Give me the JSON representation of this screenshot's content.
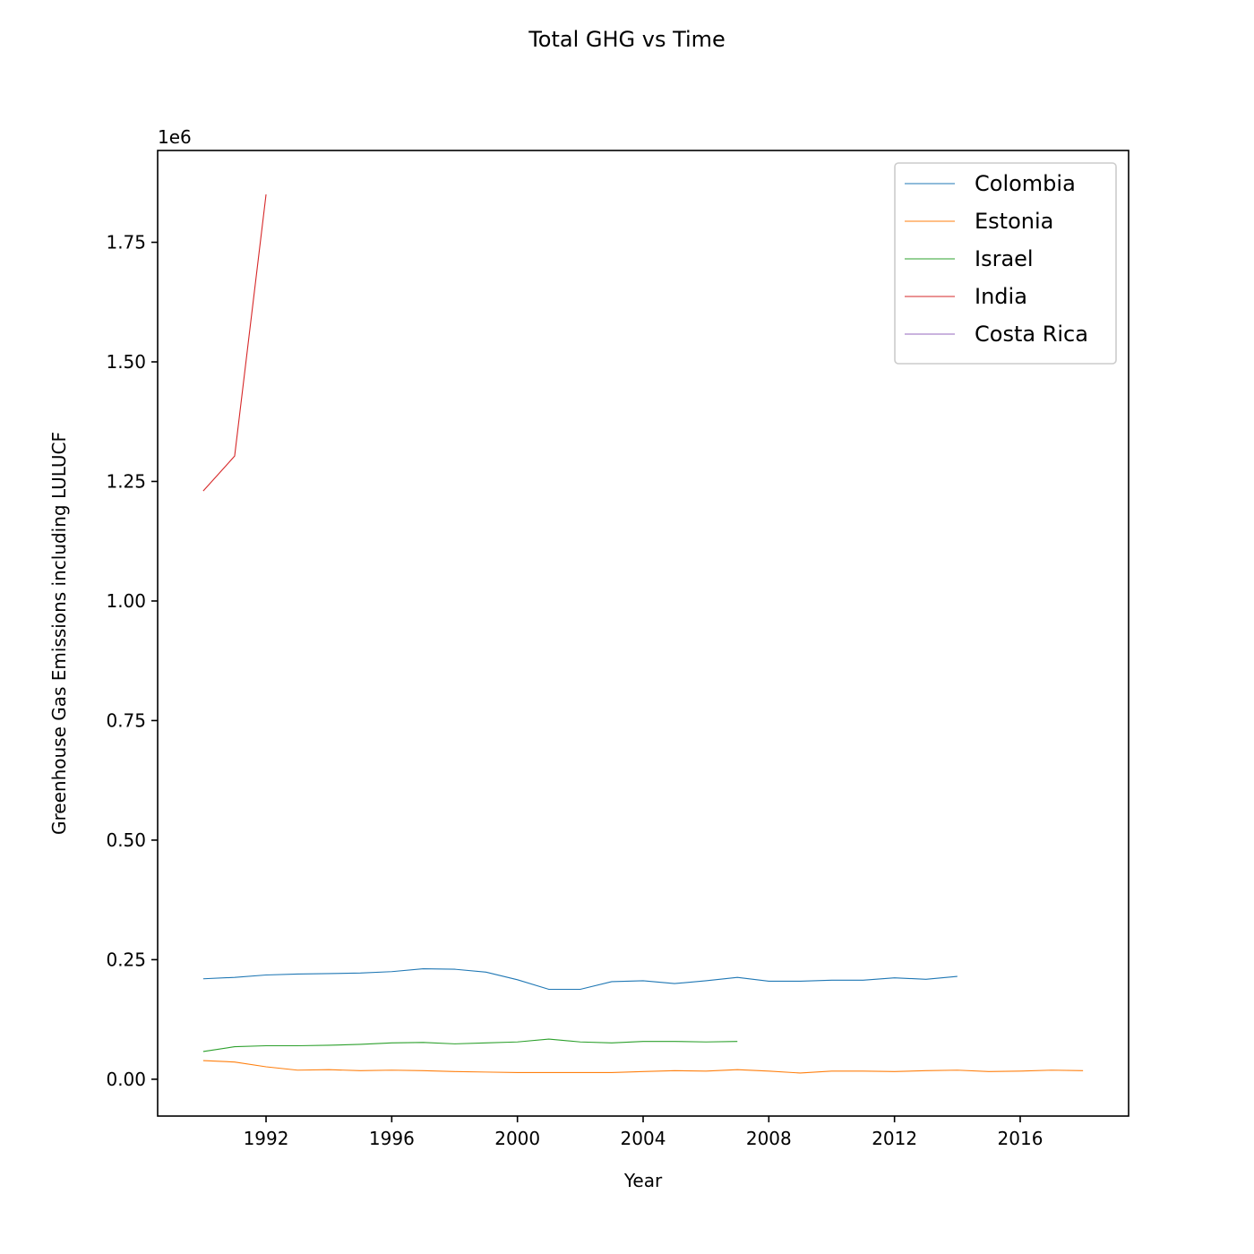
{
  "chart_data": {
    "type": "line",
    "title": "Total GHG vs Time",
    "xlabel": "Year",
    "ylabel": "Greenhouse Gas Emissions including LULUCF",
    "y_offset_label": "1e6",
    "xlim": [
      1988.55,
      2019.45
    ],
    "ylim": [
      -77000,
      1942000
    ],
    "x_ticks": [
      1992,
      1996,
      2000,
      2004,
      2008,
      2012,
      2016
    ],
    "y_ticks": [
      0,
      250000,
      500000,
      750000,
      1000000,
      1250000,
      1500000,
      1750000
    ],
    "y_tick_labels": [
      "0.00",
      "0.25",
      "0.50",
      "0.75",
      "1.00",
      "1.25",
      "1.50",
      "1.75"
    ],
    "grid": false,
    "legend_position": "top-right",
    "series": [
      {
        "name": "Colombia",
        "color": "#1f77b4",
        "x": [
          1990,
          1991,
          1992,
          1993,
          1994,
          1995,
          1996,
          1997,
          1998,
          1999,
          2000,
          2001,
          2002,
          2003,
          2004,
          2005,
          2006,
          2007,
          2008,
          2009,
          2010,
          2011,
          2012,
          2013,
          2014
        ],
        "y": [
          210000,
          213000,
          218000,
          220000,
          221000,
          222000,
          225000,
          231000,
          230000,
          224000,
          208000,
          188000,
          188000,
          204000,
          206000,
          200000,
          206000,
          213000,
          205000,
          205000,
          207000,
          207000,
          212000,
          209000,
          215000
        ]
      },
      {
        "name": "Estonia",
        "color": "#ff7f0e",
        "x": [
          1990,
          1991,
          1992,
          1993,
          1994,
          1995,
          1996,
          1997,
          1998,
          1999,
          2000,
          2001,
          2002,
          2003,
          2004,
          2005,
          2006,
          2007,
          2008,
          2009,
          2010,
          2011,
          2012,
          2013,
          2014,
          2015,
          2016,
          2017,
          2018
        ],
        "y": [
          39000,
          36000,
          26000,
          19000,
          20000,
          18000,
          19000,
          18000,
          16000,
          15000,
          14000,
          14000,
          14000,
          14000,
          16000,
          18000,
          17000,
          20000,
          17000,
          13000,
          17000,
          17000,
          16000,
          18000,
          19000,
          16000,
          17000,
          19000,
          18000
        ]
      },
      {
        "name": "Israel",
        "color": "#2ca02c",
        "x": [
          1990,
          1991,
          1992,
          1993,
          1994,
          1995,
          1996,
          1997,
          1998,
          1999,
          2000,
          2001,
          2002,
          2003,
          2004,
          2005,
          2006,
          2007
        ],
        "y": [
          58000,
          68000,
          70000,
          70000,
          71000,
          73000,
          76000,
          77000,
          74000,
          76000,
          78000,
          84000,
          78000,
          76000,
          79000,
          79000,
          78000,
          79000
        ]
      },
      {
        "name": "India",
        "color": "#d62728",
        "x": [
          1990,
          1991,
          1992
        ],
        "y": [
          1230000,
          1303000,
          1850000
        ]
      },
      {
        "name": "Costa Rica",
        "color": "#9467bd",
        "x": [],
        "y": []
      }
    ]
  }
}
